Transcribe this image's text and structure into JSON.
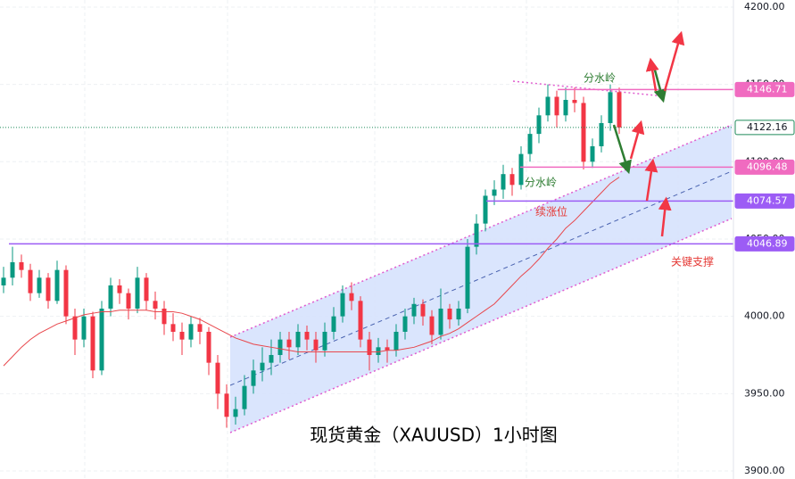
{
  "chart_data": {
    "type": "candlestick",
    "title": "现货黄金（XAUUSD）1小时图",
    "ylim": [
      3894.8,
      4204.6
    ],
    "yticks": [
      {
        "value": 3900,
        "label": "3900.00"
      },
      {
        "value": 3950,
        "label": "3950.00"
      },
      {
        "value": 4000,
        "label": "4000.00"
      },
      {
        "value": 4050,
        "label": "4050.00"
      },
      {
        "value": 4100,
        "label": "4100.00"
      },
      {
        "value": 4150,
        "label": "4150.00"
      },
      {
        "value": 4200,
        "label": "4200.00"
      }
    ],
    "grid": true,
    "up_color": "#089981",
    "down_color": "#f23645",
    "open": [
      4020,
      4025,
      4035,
      4030,
      4015,
      4025,
      4010,
      4030,
      4000,
      3985,
      4000,
      3965,
      4005,
      4020,
      4015,
      4005,
      4025,
      4010,
      4005,
      3995,
      3990,
      3985,
      3995,
      3990,
      3970,
      3950,
      3935,
      3940,
      3955,
      3965,
      3970,
      3975,
      3985,
      3980,
      3990,
      3985,
      3978,
      3990,
      4000,
      4015,
      4010,
      3985,
      3975,
      3980,
      3978,
      3990,
      4000,
      4008,
      4000,
      3988,
      4005,
      3998,
      4005,
      4045,
      4060,
      4078,
      4082,
      4092,
      4085,
      4105,
      4118,
      4130,
      4142,
      4130,
      4140,
      4138,
      4100,
      4110,
      4125,
      4145
    ],
    "high": [
      4032,
      4045,
      4040,
      4034,
      4030,
      4028,
      4036,
      4033,
      4005,
      4005,
      4003,
      4010,
      4025,
      4024,
      4018,
      4032,
      4028,
      4016,
      4010,
      4002,
      3996,
      4000,
      3999,
      3993,
      3975,
      3956,
      3948,
      3962,
      3972,
      3980,
      3985,
      3990,
      3990,
      3995,
      3994,
      3990,
      3996,
      4006,
      4020,
      4022,
      4013,
      3990,
      3986,
      3985,
      3995,
      4005,
      4012,
      4011,
      4004,
      4018,
      4008,
      4010,
      4050,
      4066,
      4082,
      4088,
      4098,
      4096,
      4110,
      4122,
      4135,
      4150,
      4146,
      4148,
      4148,
      4142,
      4115,
      4130,
      4150,
      4148
    ],
    "low": [
      4015,
      4020,
      4025,
      4010,
      4012,
      4005,
      4008,
      3995,
      3975,
      3980,
      3960,
      3962,
      4000,
      4008,
      3998,
      4002,
      4004,
      3998,
      3988,
      3984,
      3975,
      3980,
      3982,
      3962,
      3940,
      3928,
      3930,
      3936,
      3950,
      3958,
      3962,
      3970,
      3972,
      3975,
      3978,
      3970,
      3974,
      3985,
      3996,
      4004,
      3980,
      3965,
      3970,
      3970,
      3974,
      3985,
      3995,
      3994,
      3982,
      3985,
      3992,
      3994,
      4002,
      4040,
      4055,
      4072,
      4076,
      4078,
      4082,
      4100,
      4112,
      4126,
      4122,
      4126,
      4132,
      4095,
      4096,
      4106,
      4120,
      4118
    ],
    "close": [
      4025,
      4035,
      4030,
      4015,
      4025,
      4010,
      4030,
      4000,
      3985,
      4000,
      3965,
      4005,
      4020,
      4015,
      4005,
      4025,
      4010,
      4005,
      3995,
      3990,
      3985,
      3995,
      3990,
      3970,
      3950,
      3935,
      3940,
      3955,
      3965,
      3970,
      3975,
      3985,
      3980,
      3990,
      3985,
      3978,
      3990,
      4000,
      4015,
      4010,
      3985,
      3975,
      3980,
      3978,
      3990,
      4000,
      4008,
      4000,
      3988,
      4005,
      3998,
      4005,
      4045,
      4060,
      4078,
      4082,
      4092,
      4085,
      4105,
      4118,
      4130,
      4142,
      4130,
      4140,
      4138,
      4100,
      4110,
      4125,
      4145,
      4122.16
    ],
    "ma": {
      "color": "#e8474c",
      "values": [
        3968,
        3974,
        3980,
        3985,
        3989,
        3992,
        3995,
        3997,
        3999,
        4001,
        4002,
        4003,
        4003,
        4004,
        4004,
        4004,
        4004,
        4003,
        4003,
        4003,
        4002,
        4000,
        3998,
        3995,
        3992,
        3989,
        3986,
        3984,
        3982,
        3981,
        3980,
        3979,
        3978,
        3977,
        3977,
        3977,
        3977,
        3977,
        3977,
        3977,
        3977,
        3977,
        3977,
        3978,
        3978,
        3979,
        3980,
        3982,
        3984,
        3987,
        3989,
        3992,
        3996,
        4000,
        4004,
        4008,
        4014,
        4020,
        4026,
        4031,
        4037,
        4044,
        4050,
        4057,
        4062,
        4068,
        4074,
        4080,
        4086,
        4090
      ]
    },
    "levels": [
      {
        "value": 4146.71,
        "color": "#f06bc0"
      },
      {
        "value": 4122.16,
        "color": "#1f8a5a"
      },
      {
        "value": 4096.48,
        "color": "#f06bc0"
      },
      {
        "value": 4074.57,
        "color": "#9c5cf5"
      },
      {
        "value": 4046.89,
        "color": "#9c5cf5"
      }
    ],
    "annotations": [
      {
        "text": "分水岭",
        "color": "#2e7d32"
      },
      {
        "text": "分水岭",
        "color": "#2e7d32"
      },
      {
        "text": "续涨位",
        "color": "#e53935"
      },
      {
        "text": "关键支撑",
        "color": "#e53935"
      }
    ]
  }
}
